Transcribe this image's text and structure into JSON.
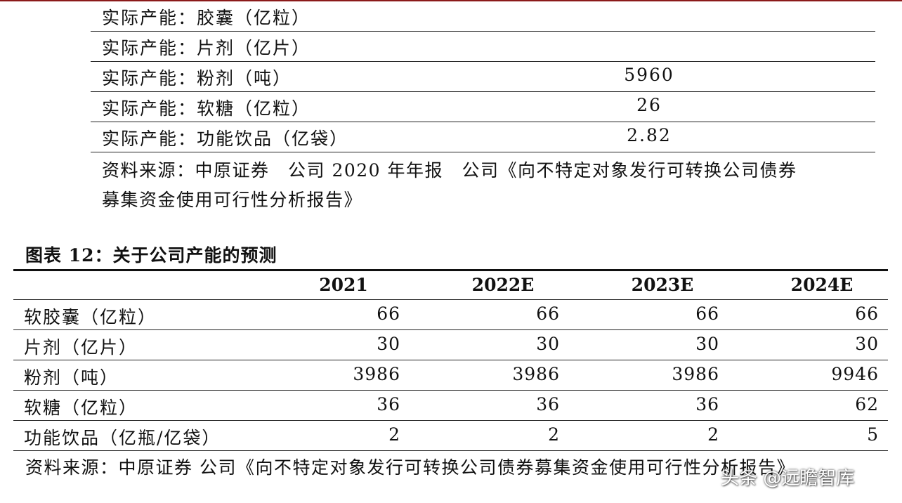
{
  "table1": {
    "rows": [
      {
        "label": "实际产能：胶囊（亿粒）",
        "value": ""
      },
      {
        "label": "实际产能：片剂（亿片）",
        "value": ""
      },
      {
        "label": "实际产能：粉剂（吨）",
        "value": "5960"
      },
      {
        "label": "实际产能：软糖（亿粒）",
        "value": "26"
      },
      {
        "label": "实际产能：功能饮品（亿袋）",
        "value": "2.82"
      }
    ],
    "source_line1": "资料来源：中原证券　公司 2020 年年报　公司《向不特定对象发行可转换公司债券",
    "source_line2": "募集资金使用可行性分析报告》"
  },
  "table2": {
    "title": "图表 12：关于公司产能的预测",
    "headers": [
      "2021",
      "2022E",
      "2023E",
      "2024E"
    ],
    "rows": [
      {
        "label": "软胶囊（亿粒）",
        "values": [
          "66",
          "66",
          "66",
          "66"
        ]
      },
      {
        "label": "片剂（亿片）",
        "values": [
          "30",
          "30",
          "30",
          "30"
        ]
      },
      {
        "label": "粉剂（吨）",
        "values": [
          "3986",
          "3986",
          "3986",
          "9946"
        ]
      },
      {
        "label": "软糖（亿粒）",
        "values": [
          "36",
          "36",
          "36",
          "62"
        ]
      },
      {
        "label": "功能饮品（亿瓶/亿袋）",
        "values": [
          "2",
          "2",
          "2",
          "5"
        ]
      }
    ],
    "source": "资料来源：中原证券 公司《向不特定对象发行可转换公司债券募集资金使用可行性分析报告》"
  },
  "watermark": "头条 @远瞻智库",
  "colors": {
    "top_rule": "#8b1a1a",
    "text": "#111111"
  }
}
